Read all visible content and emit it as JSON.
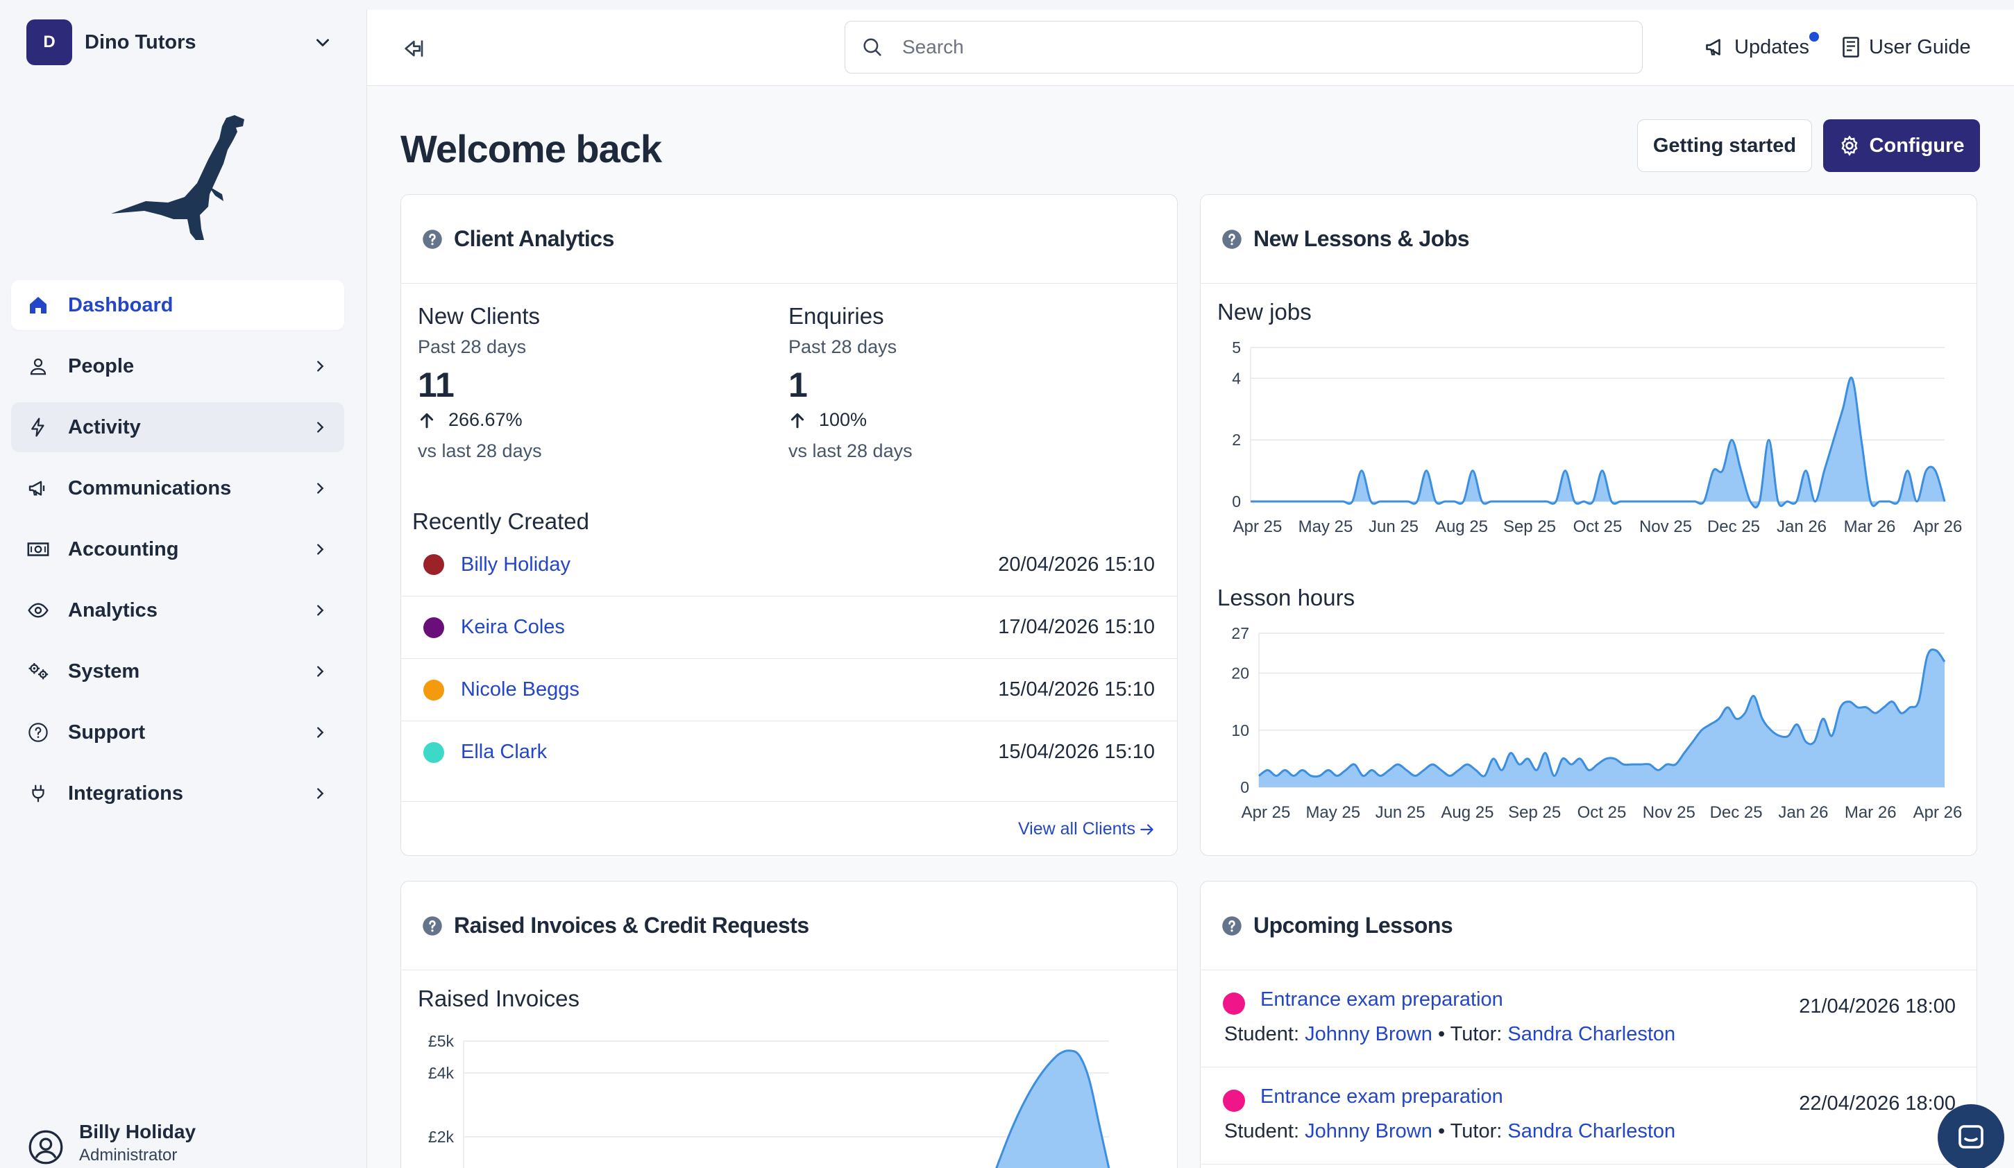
{
  "workspace": {
    "initial": "D",
    "name": "Dino Tutors"
  },
  "nav": [
    {
      "label": "Dashboard",
      "icon": "home-icon",
      "active": true
    },
    {
      "label": "People",
      "icon": "person-icon"
    },
    {
      "label": "Activity",
      "icon": "lightning-icon"
    },
    {
      "label": "Communications",
      "icon": "megaphone-icon"
    },
    {
      "label": "Accounting",
      "icon": "banknote-icon"
    },
    {
      "label": "Analytics",
      "icon": "eye-icon"
    },
    {
      "label": "System",
      "icon": "cogs-icon"
    },
    {
      "label": "Support",
      "icon": "help-circle-icon"
    },
    {
      "label": "Integrations",
      "icon": "plug-icon"
    }
  ],
  "user": {
    "name": "Billy Holiday",
    "role": "Administrator"
  },
  "topbar": {
    "search_placeholder": "Search",
    "updates": "Updates",
    "user_guide": "User Guide"
  },
  "page": {
    "title": "Welcome back",
    "getting_started": "Getting started",
    "configure": "Configure"
  },
  "client_analytics": {
    "title": "Client Analytics",
    "new_clients": {
      "label": "New Clients",
      "period": "Past 28 days",
      "value": "11",
      "change": "266.67%",
      "vs": "vs last 28 days"
    },
    "enquiries": {
      "label": "Enquiries",
      "period": "Past 28 days",
      "value": "1",
      "change": "100%",
      "vs": "vs last 28 days"
    },
    "recent_title": "Recently Created",
    "recent": [
      {
        "name": "Billy Holiday",
        "date": "20/04/2026 15:10",
        "color": "#9b2226"
      },
      {
        "name": "Keira Coles",
        "date": "17/04/2026 15:10",
        "color": "#6a0f7a"
      },
      {
        "name": "Nicole Beggs",
        "date": "15/04/2026 15:10",
        "color": "#f5990f"
      },
      {
        "name": "Ella Clark",
        "date": "15/04/2026 15:10",
        "color": "#3dd9c8"
      }
    ],
    "view_all": "View all Clients"
  },
  "lessons_jobs": {
    "title": "New Lessons & Jobs",
    "new_jobs_title": "New jobs",
    "lesson_hours_title": "Lesson hours"
  },
  "invoices": {
    "title": "Raised Invoices & Credit Requests",
    "raised_title": "Raised Invoices"
  },
  "upcoming": {
    "title": "Upcoming Lessons",
    "student_label": "Student:",
    "tutor_label": "Tutor:",
    "bullet": "•",
    "lessons": [
      {
        "name": "Entrance exam preparation",
        "student": "Johnny Brown",
        "tutor": "Sandra Charleston",
        "date": "21/04/2026 18:00"
      },
      {
        "name": "Entrance exam preparation",
        "student": "Johnny Brown",
        "tutor": "Sandra Charleston",
        "date": "22/04/2026 18:00"
      }
    ]
  },
  "chart_data": [
    {
      "type": "area",
      "title": "New jobs",
      "x_ticks": [
        "Apr 25",
        "May 25",
        "Jun 25",
        "Aug 25",
        "Sep 25",
        "Oct 25",
        "Nov 25",
        "Dec 25",
        "Jan 26",
        "Mar 26",
        "Apr 26"
      ],
      "y_ticks": [
        "0",
        "2",
        "4",
        "5"
      ],
      "ylim": [
        0,
        5
      ],
      "series": [
        {
          "values": [
            0,
            0,
            0,
            0,
            0,
            0,
            0,
            0,
            0,
            0,
            0,
            0,
            1,
            0,
            0,
            0,
            0,
            0,
            0,
            1,
            0,
            0,
            0,
            0,
            1,
            0,
            0,
            0,
            0,
            0,
            0,
            0,
            0,
            0,
            1,
            0,
            0,
            0,
            1,
            0,
            0,
            0,
            0,
            0,
            0,
            0,
            0,
            0,
            0,
            0,
            1,
            1,
            2,
            1,
            0,
            0,
            2,
            0,
            0,
            0,
            1,
            0,
            1,
            2,
            3,
            4,
            2,
            0,
            0,
            0,
            0,
            1,
            0,
            1,
            1,
            0
          ]
        }
      ],
      "color": "#3b8ee0"
    },
    {
      "type": "area",
      "title": "Lesson hours",
      "x_ticks": [
        "Apr 25",
        "May 25",
        "Jun 25",
        "Aug 25",
        "Sep 25",
        "Oct 25",
        "Nov 25",
        "Dec 25",
        "Jan 26",
        "Mar 26",
        "Apr 26"
      ],
      "y_ticks": [
        "0",
        "10",
        "20",
        "27"
      ],
      "ylim": [
        0,
        27
      ],
      "series": [
        {
          "values": [
            2,
            3,
            2,
            3,
            2,
            3,
            2,
            2,
            3,
            2,
            3,
            4,
            2,
            3,
            2,
            3,
            4,
            3,
            2,
            3,
            4,
            3,
            2,
            3,
            4,
            3,
            2,
            5,
            3,
            6,
            4,
            5,
            3,
            6,
            2,
            5,
            4,
            5,
            3,
            4,
            5,
            5,
            4,
            4,
            4,
            4,
            3,
            4,
            4,
            6,
            8,
            10,
            11,
            12,
            14,
            12,
            13,
            16,
            12,
            10,
            9,
            9,
            11,
            8,
            8,
            12,
            9,
            14,
            15,
            14,
            14,
            13,
            14,
            15,
            13,
            14,
            15,
            23,
            24,
            22
          ]
        }
      ],
      "color": "#3b8ee0"
    },
    {
      "type": "area",
      "title": "Raised Invoices",
      "y_ticks": [
        "£2k",
        "£4k",
        "£5k"
      ],
      "ylim": [
        0,
        5000
      ],
      "series": [
        {
          "values": [
            0,
            0,
            0,
            0,
            0,
            0,
            0,
            0,
            0,
            0,
            0,
            0,
            0,
            0,
            0,
            0,
            0,
            0,
            0,
            0,
            0,
            0,
            0,
            0,
            0,
            0,
            0,
            0,
            0,
            0,
            0,
            0,
            0,
            0,
            0,
            0,
            0,
            0,
            0,
            0,
            0,
            0,
            0,
            0,
            0,
            0,
            0,
            0,
            0,
            0,
            0,
            0,
            0,
            500,
            1300,
            2100,
            2800,
            3400,
            3900,
            4300,
            4600,
            4700,
            4550,
            3800,
            2400,
            1000
          ]
        }
      ],
      "color": "#3b8ee0"
    }
  ]
}
